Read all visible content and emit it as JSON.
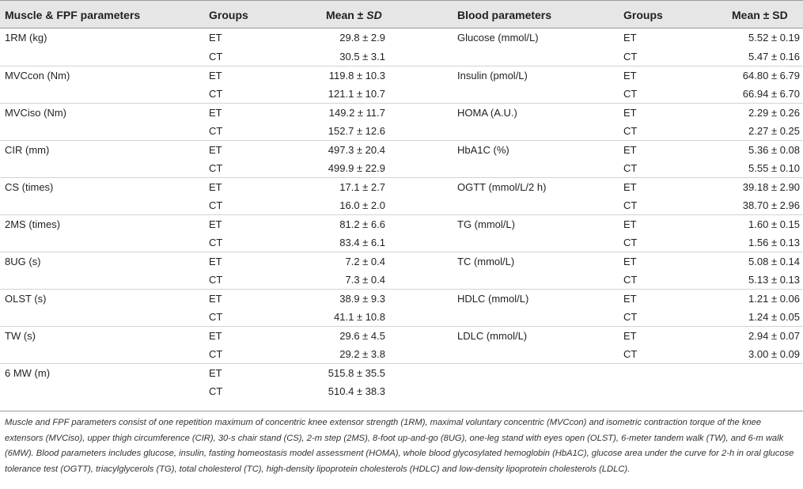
{
  "headers": {
    "left_param": "Muscle & FPF parameters",
    "left_groups": "Groups",
    "left_mean": "Mean ±",
    "left_sd": "SD",
    "right_param": "Blood parameters",
    "right_groups": "Groups",
    "right_mean": "Mean ± SD"
  },
  "muscle": [
    {
      "name": "1RM (kg)",
      "et": "29.8 ± 2.9",
      "ct": "30.5 ± 3.1"
    },
    {
      "name": "MVCcon (Nm)",
      "et": "119.8 ± 10.3",
      "ct": "121.1 ± 10.7"
    },
    {
      "name": "MVCiso (Nm)",
      "et": "149.2 ± 11.7",
      "ct": "152.7 ± 12.6"
    },
    {
      "name": "CIR (mm)",
      "et": "497.3 ± 20.4",
      "ct": "499.9 ± 22.9"
    },
    {
      "name": "CS (times)",
      "et": "17.1 ± 2.7",
      "ct": "16.0 ± 2.0"
    },
    {
      "name": "2MS (times)",
      "et": "81.2 ± 6.6",
      "ct": "83.4 ± 6.1"
    },
    {
      "name": "8UG (s)",
      "et": "7.2 ± 0.4",
      "ct": "7.3 ± 0.4"
    },
    {
      "name": "OLST (s)",
      "et": "38.9 ± 9.3",
      "ct": "41.1 ± 10.8"
    },
    {
      "name": "TW (s)",
      "et": "29.6 ± 4.5",
      "ct": "29.2 ± 3.8"
    },
    {
      "name": "6 MW (m)",
      "et": "515.8 ± 35.5",
      "ct": "510.4 ± 38.3"
    }
  ],
  "blood": [
    {
      "name": "Glucose (mmol/L)",
      "et": "5.52 ± 0.19",
      "ct": "5.47 ± 0.16"
    },
    {
      "name": "Insulin (pmol/L)",
      "et": "64.80 ± 6.79",
      "ct": "66.94 ± 6.70"
    },
    {
      "name": "HOMA (A.U.)",
      "et": "2.29 ± 0.26",
      "ct": "2.27 ± 0.25"
    },
    {
      "name": "HbA1C (%)",
      "et": "5.36 ± 0.08",
      "ct": "5.55 ± 0.10"
    },
    {
      "name": "OGTT (mmol/L/2 h)",
      "et": "39.18 ± 2.90",
      "ct": "38.70 ± 2.96"
    },
    {
      "name": "TG (mmol/L)",
      "et": "1.60 ± 0.15",
      "ct": "1.56 ± 0.13"
    },
    {
      "name": "TC (mmol/L)",
      "et": "5.08 ± 0.14",
      "ct": "5.13 ± 0.13"
    },
    {
      "name": "HDLC (mmol/L)",
      "et": "1.21 ± 0.06",
      "ct": "1.24 ± 0.05"
    },
    {
      "name": "LDLC (mmol/L)",
      "et": "2.94 ± 0.07",
      "ct": "3.00 ± 0.09"
    }
  ],
  "group_labels": {
    "et": "ET",
    "ct": "CT"
  },
  "footnote": "Muscle and FPF parameters consist of one repetition maximum of concentric knee extensor strength (1RM), maximal voluntary concentric (MVCcon) and isometric contraction torque of the knee extensors (MVCiso), upper thigh circumference (CIR), 30-s chair stand (CS), 2-m step (2MS), 8-foot up-and-go (8UG), one-leg stand with eyes open (OLST), 6-meter tandem walk (TW), and 6-m walk (6MW). Blood parameters includes glucose, insulin, fasting homeostasis model assessment (HOMA), whole blood glycosylated hemoglobin (HbA1C), glucose area under the curve for 2-h in oral glucose tolerance test (OGTT), triacylglycerols (TG), total cholesterol (TC), high-density lipoprotein cholesterols (HDLC) and low-density lipoprotein cholesterols (LDLC)."
}
